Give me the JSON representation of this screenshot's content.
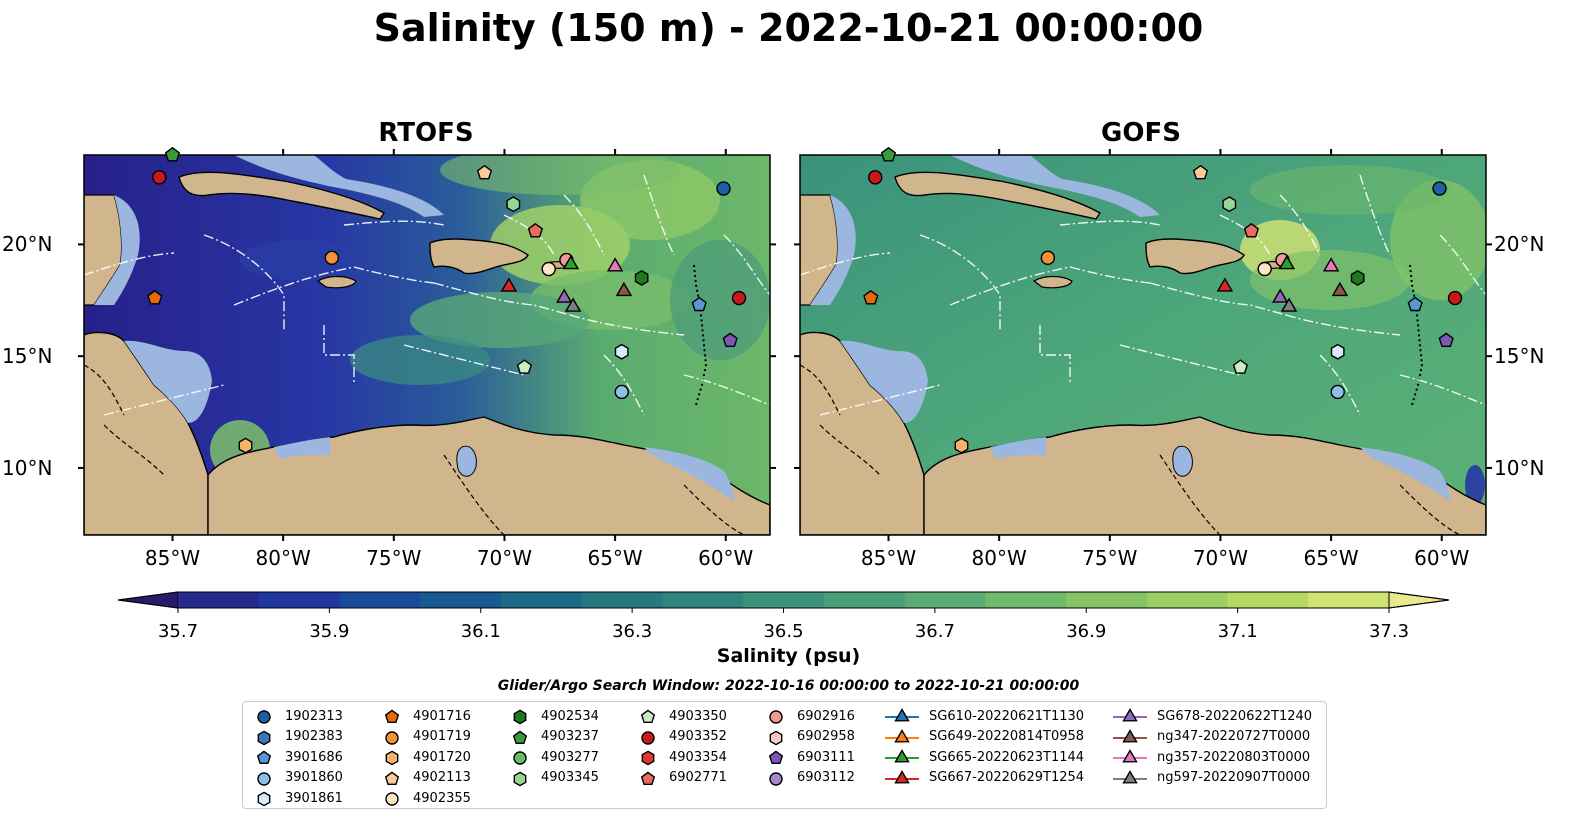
{
  "title": "Salinity (150 m) - 2022-10-21 00:00:00",
  "panels": [
    {
      "title": "RTOFS"
    },
    {
      "title": "GOFS"
    }
  ],
  "lat_ticks": [
    "20°N",
    "15°N",
    "10°N"
  ],
  "lon_ticks": [
    "85°W",
    "80°W",
    "75°W",
    "70°W",
    "65°W",
    "60°W"
  ],
  "colorbar": {
    "label": "Salinity (psu)",
    "ticks": [
      "35.7",
      "35.9",
      "36.1",
      "36.3",
      "36.5",
      "36.7",
      "36.9",
      "37.1",
      "37.3"
    ],
    "colors": [
      "#2a1b6a",
      "#272a8d",
      "#2137a0",
      "#1b4a9b",
      "#185a8f",
      "#1d6b86",
      "#25787f",
      "#2e857c",
      "#3a927c",
      "#4a9f78",
      "#5cab72",
      "#70b86b",
      "#86c466",
      "#9ccf62",
      "#b6d966",
      "#d0e273",
      "#e9e98c"
    ]
  },
  "search_window": "Glider/Argo Search Window: 2022-10-16 00:00:00 to 2022-10-21 00:00:00",
  "legend": {
    "columns": [
      [
        {
          "label": "1902313",
          "shape": "circle",
          "color": "#1f5fa8"
        },
        {
          "label": "1902383",
          "shape": "hexagon",
          "color": "#3a78b8"
        },
        {
          "label": "3901686",
          "shape": "pentagon",
          "color": "#5a98d4"
        },
        {
          "label": "3901860",
          "shape": "circle",
          "color": "#8cc0e6"
        },
        {
          "label": "3901861",
          "shape": "hexagon",
          "color": "#d7eaf8"
        }
      ],
      [
        {
          "label": "4901716",
          "shape": "pentagon",
          "color": "#e36b0a"
        },
        {
          "label": "4901719",
          "shape": "circle",
          "color": "#f39237"
        },
        {
          "label": "4901720",
          "shape": "hexagon",
          "color": "#f7b26c"
        },
        {
          "label": "4902113",
          "shape": "pentagon",
          "color": "#fbcb98"
        },
        {
          "label": "4902355",
          "shape": "circle",
          "color": "#fde4c8"
        }
      ],
      [
        {
          "label": "4902534",
          "shape": "hexagon",
          "color": "#1f7a1f"
        },
        {
          "label": "4903237",
          "shape": "pentagon",
          "color": "#3a9a3a"
        },
        {
          "label": "4903277",
          "shape": "circle",
          "color": "#66bd63"
        },
        {
          "label": "4903345",
          "shape": "hexagon",
          "color": "#98d694"
        }
      ],
      [
        {
          "label": "4903350",
          "shape": "pentagon",
          "color": "#c9ecc2"
        },
        {
          "label": "4903352",
          "shape": "circle",
          "color": "#c8191c"
        },
        {
          "label": "4903354",
          "shape": "hexagon",
          "color": "#dc3b32"
        },
        {
          "label": "6902771",
          "shape": "pentagon",
          "color": "#ea6a64"
        }
      ],
      [
        {
          "label": "6902916",
          "shape": "circle",
          "color": "#f39896"
        },
        {
          "label": "6902958",
          "shape": "hexagon",
          "color": "#f9c7c6"
        },
        {
          "label": "6903111",
          "shape": "pentagon",
          "color": "#7e57b2"
        },
        {
          "label": "6903112",
          "shape": "circle",
          "color": "#a487cf"
        }
      ],
      [
        {
          "label": "SG610-20220621T1130",
          "shape": "triangle",
          "color": "#1f77b4",
          "line": true
        },
        {
          "label": "SG649-20220814T0958",
          "shape": "triangle",
          "color": "#ff7f0e",
          "line": true
        },
        {
          "label": "SG665-20220623T1144",
          "shape": "triangle",
          "color": "#2ca02c",
          "line": true
        },
        {
          "label": "SG667-20220629T1254",
          "shape": "triangle",
          "color": "#d62728",
          "line": true
        }
      ],
      [
        {
          "label": "SG678-20220622T1240",
          "shape": "triangle",
          "color": "#9467bd",
          "line": true
        },
        {
          "label": "ng347-20220727T0000",
          "shape": "triangle",
          "color": "#8c564b",
          "line": true
        },
        {
          "label": "ng357-20220803T0000",
          "shape": "triangle",
          "color": "#e377c2",
          "line": true
        },
        {
          "label": "ng597-20220907T0000",
          "shape": "triangle",
          "color": "#7f7f7f",
          "line": true
        }
      ]
    ]
  },
  "markers": [
    {
      "id": "4903237",
      "shape": "pentagon",
      "color": "#3a9a3a",
      "lon": -85,
      "lat": 24.0
    },
    {
      "id": "4903352",
      "shape": "circle",
      "color": "#c8191c",
      "lon": -85.6,
      "lat": 23.0
    },
    {
      "id": "4902113",
      "shape": "pentagon",
      "color": "#fbcb98",
      "lon": -70.9,
      "lat": 23.2
    },
    {
      "id": "1902313",
      "shape": "circle",
      "color": "#1f5fa8",
      "lon": -60.1,
      "lat": 22.5
    },
    {
      "id": "4903345",
      "shape": "hexagon",
      "color": "#98d694",
      "lon": -69.6,
      "lat": 21.8
    },
    {
      "id": "6902771",
      "shape": "pentagon",
      "color": "#ea6a64",
      "lon": -68.6,
      "lat": 20.6
    },
    {
      "id": "4901719",
      "shape": "circle",
      "color": "#f39237",
      "lon": -77.8,
      "lat": 19.4
    },
    {
      "id": "4901716",
      "shape": "pentagon",
      "color": "#e36b0a",
      "lon": -85.8,
      "lat": 17.6
    },
    {
      "id": "6902916",
      "shape": "circle",
      "color": "#f39896",
      "lon": -67.2,
      "lat": 19.3
    },
    {
      "id": "4902355",
      "shape": "circle",
      "color": "#fde4c8",
      "lon": -68.0,
      "lat": 18.9
    },
    {
      "id": "SG665-20220623T1144",
      "shape": "triangle",
      "color": "#2ca02c",
      "lon": -67.0,
      "lat": 19.1
    },
    {
      "id": "ng357-20220803T0000",
      "shape": "triangle",
      "color": "#e377c2",
      "lon": -65.0,
      "lat": 19.0
    },
    {
      "id": "4902534",
      "shape": "hexagon",
      "color": "#1f7a1f",
      "lon": -63.8,
      "lat": 18.5
    },
    {
      "id": "SG667-20220629T1254",
      "shape": "triangle",
      "color": "#d62728",
      "lon": -69.8,
      "lat": 18.1
    },
    {
      "id": "SG678-20220622T1240",
      "shape": "triangle",
      "color": "#9467bd",
      "lon": -67.3,
      "lat": 17.6
    },
    {
      "id": "ng597-20220907T0000",
      "shape": "triangle",
      "color": "#7f7f7f",
      "lon": -66.9,
      "lat": 17.2
    },
    {
      "id": "ng347-20220727T0000",
      "shape": "triangle",
      "color": "#8c564b",
      "lon": -64.6,
      "lat": 17.9
    },
    {
      "id": "3901686",
      "shape": "pentagon",
      "color": "#5a98d4",
      "lon": -61.2,
      "lat": 17.3
    },
    {
      "id": "4903352b",
      "shape": "circle",
      "color": "#c8191c",
      "lon": -59.4,
      "lat": 17.6
    },
    {
      "id": "6903111",
      "shape": "pentagon",
      "color": "#7e57b2",
      "lon": -59.8,
      "lat": 15.7
    },
    {
      "id": "3901861",
      "shape": "hexagon",
      "color": "#d7eaf8",
      "lon": -64.7,
      "lat": 15.2
    },
    {
      "id": "4903350",
      "shape": "pentagon",
      "color": "#c9ecc2",
      "lon": -69.1,
      "lat": 14.5
    },
    {
      "id": "3901860",
      "shape": "circle",
      "color": "#8cc0e6",
      "lon": -64.7,
      "lat": 13.4
    },
    {
      "id": "4901720",
      "shape": "hexagon",
      "color": "#f7b26c",
      "lon": -81.7,
      "lat": 11.0
    }
  ]
}
